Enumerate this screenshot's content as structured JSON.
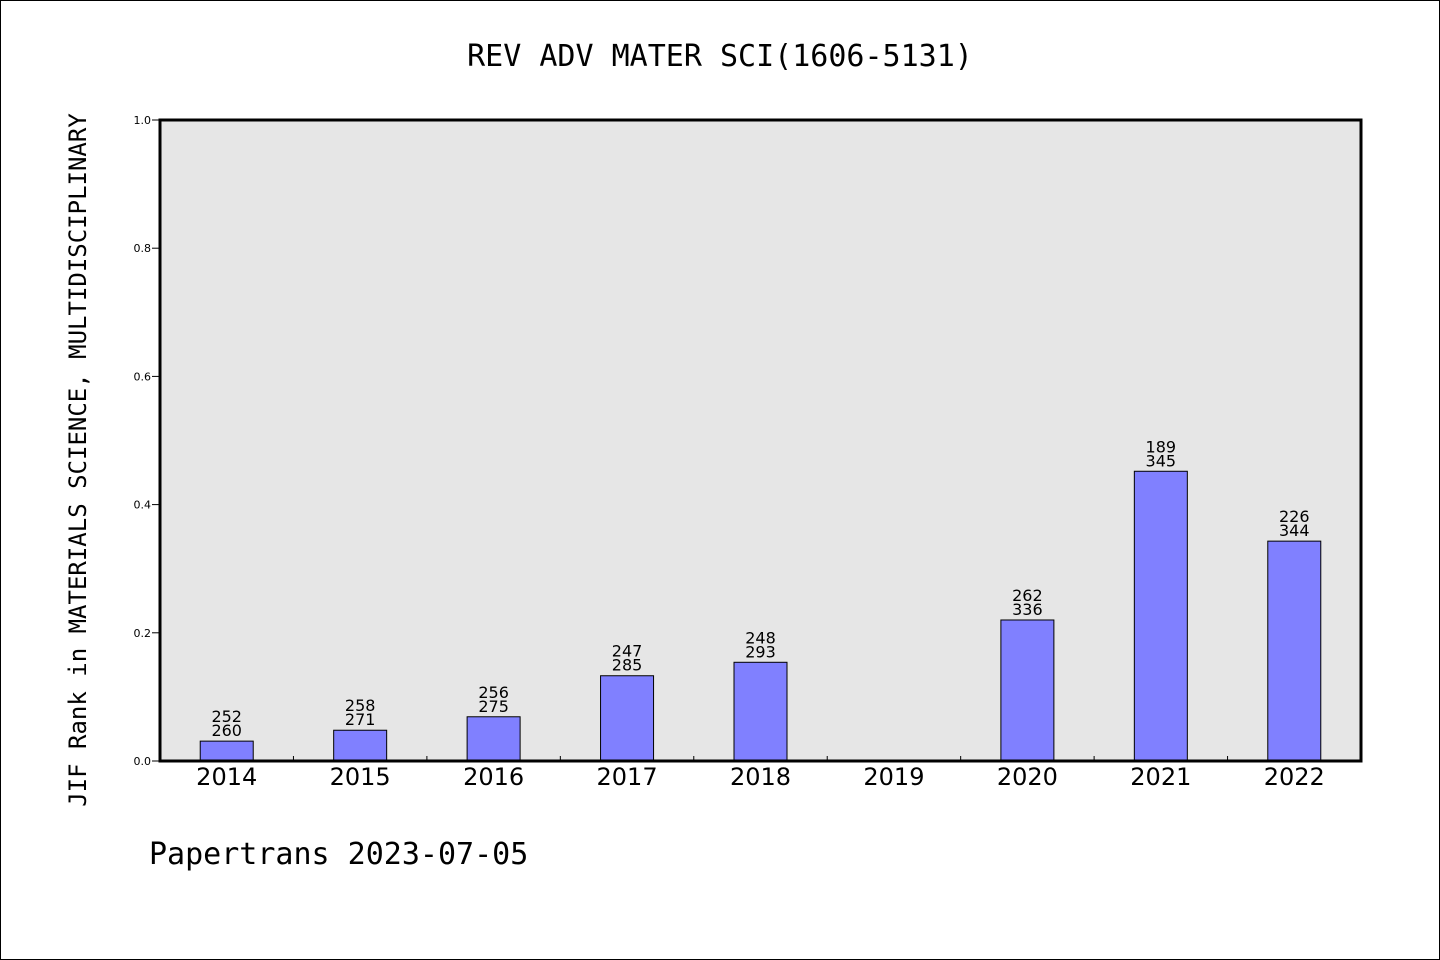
{
  "chart_data": {
    "type": "bar",
    "title": "REV ADV MATER SCI(1606-5131)",
    "xlabel": "",
    "ylabel": "JIF Rank in MATERIALS SCIENCE, MULTIDISCIPLINARY",
    "ylim": [
      0,
      1.0
    ],
    "yticks": [
      "0.0",
      "0.2",
      "0.4",
      "0.6",
      "0.8",
      "1.0"
    ],
    "grid": false,
    "legend": "none",
    "categories": [
      "2014",
      "2015",
      "2016",
      "2017",
      "2018",
      "2019",
      "2020",
      "2021",
      "2022"
    ],
    "values": [
      0.031,
      0.048,
      0.069,
      0.133,
      0.154,
      null,
      0.22,
      0.452,
      0.343
    ],
    "labels": [
      [
        "252",
        "260"
      ],
      [
        "258",
        "271"
      ],
      [
        "256",
        "275"
      ],
      [
        "247",
        "285"
      ],
      [
        "248",
        "293"
      ],
      null,
      [
        "262",
        "336"
      ],
      [
        "189",
        "345"
      ],
      [
        "226",
        "344"
      ]
    ],
    "colors": {
      "bar": "#8080ff",
      "plot_bg": "#e6e6e6"
    }
  },
  "footer": "Papertrans 2023-07-05"
}
